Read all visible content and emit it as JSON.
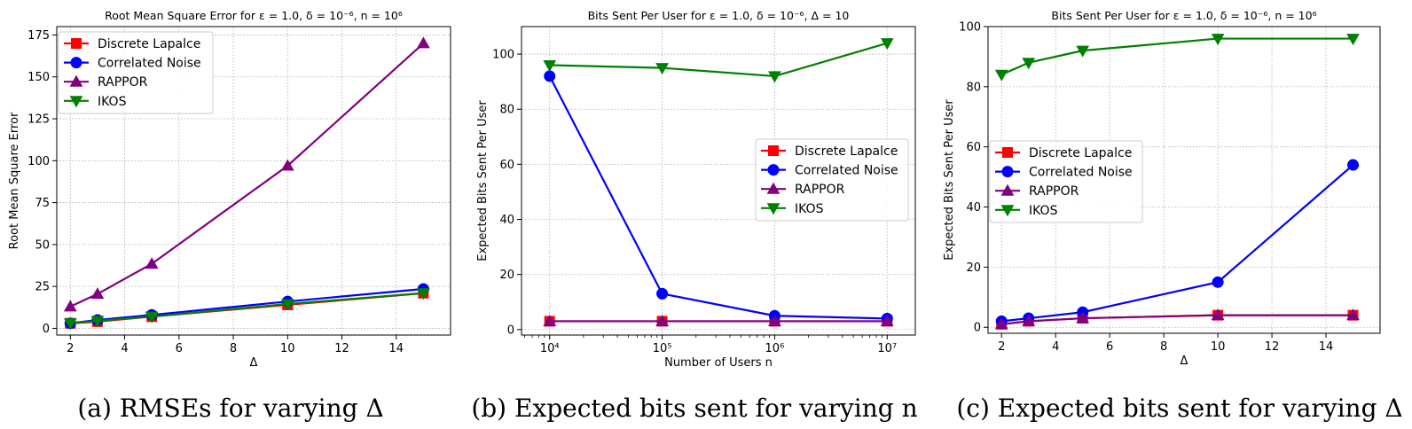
{
  "series_styles": [
    {
      "name": "Discrete Lapalce",
      "color": "#ff0000",
      "marker": "square"
    },
    {
      "name": "Correlated Noise",
      "color": "#0000ff",
      "marker": "circle"
    },
    {
      "name": "RAPPOR",
      "color": "#800080",
      "marker": "triangle-up"
    },
    {
      "name": "IKOS",
      "color": "#008000",
      "marker": "triangle-down"
    }
  ],
  "chart_data": [
    {
      "type": "line",
      "title": "Root Mean Square Error for ε = 1.0, δ = 10⁻⁶, n = 10⁶",
      "caption": "(a) RMSEs for varying Δ",
      "xlabel": "Δ",
      "ylabel": "Root Mean Square Error",
      "xscale": "linear",
      "xlim": [
        1.5,
        16.0
      ],
      "ylim": [
        -4,
        180
      ],
      "xticks": [
        2,
        4,
        6,
        8,
        10,
        12,
        14
      ],
      "xtick_labels": [
        "2",
        "4",
        "6",
        "8",
        "10",
        "12",
        "14"
      ],
      "yticks": [
        0,
        25,
        50,
        75,
        100,
        125,
        150,
        175
      ],
      "ytick_labels": [
        "0",
        "25",
        "50",
        "75",
        "100",
        "125",
        "150",
        "175"
      ],
      "grid": true,
      "legend_position": "upper-left",
      "x": [
        2,
        3,
        5,
        10,
        15
      ],
      "series": [
        {
          "name": "Discrete Lapalce",
          "values": [
            3,
            4,
            7,
            14,
            21
          ]
        },
        {
          "name": "Correlated Noise",
          "values": [
            3,
            5,
            8,
            16,
            23.5
          ]
        },
        {
          "name": "RAPPOR",
          "values": [
            13,
            20.5,
            38.5,
            97,
            170
          ]
        },
        {
          "name": "IKOS",
          "values": [
            3,
            4.5,
            7,
            14.5,
            21
          ]
        }
      ]
    },
    {
      "type": "line",
      "title": "Bits Sent Per User for ε = 1.0, δ = 10⁻⁶, Δ = 10",
      "caption": "(b) Expected bits sent for varying n",
      "xlabel": "Number of Users n",
      "ylabel": "Expected Bits Sent Per User",
      "xscale": "log",
      "xlim": [
        3.75,
        7.25
      ],
      "ylim": [
        -2,
        110
      ],
      "xticks": [
        4,
        5,
        6,
        7
      ],
      "xtick_labels": [
        "10⁴",
        "10⁵",
        "10⁶",
        "10⁷"
      ],
      "yticks": [
        0,
        20,
        40,
        60,
        80,
        100
      ],
      "ytick_labels": [
        "0",
        "20",
        "40",
        "60",
        "80",
        "100"
      ],
      "grid": true,
      "legend_position": "center-right",
      "x": [
        4,
        5,
        6,
        7
      ],
      "series": [
        {
          "name": "Discrete Lapalce",
          "values": [
            3,
            3,
            3,
            3
          ]
        },
        {
          "name": "Correlated Noise",
          "values": [
            92,
            13,
            5,
            4
          ]
        },
        {
          "name": "RAPPOR",
          "values": [
            3,
            3,
            3,
            3
          ]
        },
        {
          "name": "IKOS",
          "values": [
            96,
            95,
            92,
            104
          ]
        }
      ]
    },
    {
      "type": "line",
      "title": "Bits Sent Per User for ε = 1.0, δ = 10⁻⁶, n = 10⁶",
      "caption": "(c) Expected bits sent for varying Δ",
      "xlabel": "Δ",
      "ylabel": "Expected Bits Sent Per User",
      "xscale": "linear",
      "xlim": [
        1.5,
        16.0
      ],
      "ylim": [
        -2,
        100
      ],
      "xticks": [
        2,
        4,
        6,
        8,
        10,
        12,
        14
      ],
      "xtick_labels": [
        "2",
        "4",
        "6",
        "8",
        "10",
        "12",
        "14"
      ],
      "yticks": [
        0,
        20,
        40,
        60,
        80,
        100
      ],
      "ytick_labels": [
        "0",
        "20",
        "40",
        "60",
        "80",
        "100"
      ],
      "grid": true,
      "legend_position": "center-left",
      "x": [
        2,
        3,
        5,
        10,
        15
      ],
      "series": [
        {
          "name": "Discrete Lapalce",
          "values": [
            1,
            2,
            3,
            4,
            4
          ]
        },
        {
          "name": "Correlated Noise",
          "values": [
            2,
            3,
            5,
            15,
            54
          ]
        },
        {
          "name": "RAPPOR",
          "values": [
            1,
            2,
            3,
            4,
            4
          ]
        },
        {
          "name": "IKOS",
          "values": [
            84,
            88,
            92,
            96,
            96
          ]
        }
      ]
    }
  ]
}
